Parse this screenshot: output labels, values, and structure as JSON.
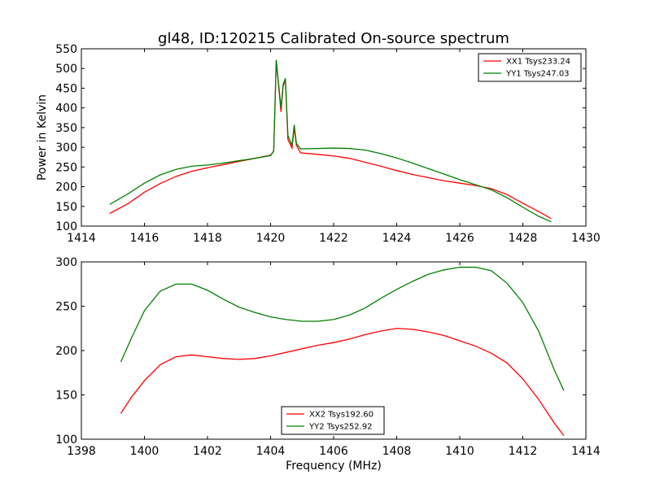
{
  "chart_data": [
    {
      "type": "line",
      "title": "gl48, ID:120215 Calibrated On-source spectrum",
      "xlabel": "",
      "ylabel": "Power in Kelvin",
      "xlim": [
        1414,
        1430
      ],
      "ylim": [
        100,
        550
      ],
      "xticks": [
        1414,
        1416,
        1418,
        1420,
        1422,
        1424,
        1426,
        1428,
        1430
      ],
      "yticks": [
        100,
        150,
        200,
        250,
        300,
        350,
        400,
        450,
        500,
        550
      ],
      "grid": false,
      "legend_position": "top-right",
      "series": [
        {
          "name": "XX1 Tsys233.24",
          "color": "#ff0000",
          "points": [
            [
              1414.9,
              132
            ],
            [
              1415.5,
              158
            ],
            [
              1416.0,
              186
            ],
            [
              1416.5,
              208
            ],
            [
              1417.0,
              226
            ],
            [
              1417.5,
              239
            ],
            [
              1418.0,
              248
            ],
            [
              1418.5,
              256
            ],
            [
              1419.0,
              264
            ],
            [
              1419.5,
              272
            ],
            [
              1420.0,
              280
            ],
            [
              1420.1,
              290
            ],
            [
              1420.18,
              520
            ],
            [
              1420.25,
              460
            ],
            [
              1420.33,
              390
            ],
            [
              1420.4,
              455
            ],
            [
              1420.47,
              472
            ],
            [
              1420.55,
              320
            ],
            [
              1420.68,
              298
            ],
            [
              1420.75,
              350
            ],
            [
              1420.82,
              305
            ],
            [
              1420.95,
              286
            ],
            [
              1421.5,
              282
            ],
            [
              1422.0,
              278
            ],
            [
              1422.5,
              272
            ],
            [
              1423.0,
              262
            ],
            [
              1423.5,
              252
            ],
            [
              1424.0,
              241
            ],
            [
              1424.5,
              231
            ],
            [
              1425.0,
              223
            ],
            [
              1425.5,
              215
            ],
            [
              1426.0,
              209
            ],
            [
              1426.5,
              203
            ],
            [
              1427.0,
              195
            ],
            [
              1427.5,
              180
            ],
            [
              1428.0,
              158
            ],
            [
              1428.5,
              137
            ],
            [
              1428.9,
              119
            ]
          ]
        },
        {
          "name": "YY1 Tsys247.03",
          "color": "#008000",
          "points": [
            [
              1414.9,
              155
            ],
            [
              1415.5,
              183
            ],
            [
              1416.0,
              209
            ],
            [
              1416.5,
              230
            ],
            [
              1417.0,
              244
            ],
            [
              1417.5,
              252
            ],
            [
              1418.0,
              255
            ],
            [
              1418.5,
              260
            ],
            [
              1419.0,
              266
            ],
            [
              1419.5,
              272
            ],
            [
              1420.0,
              279
            ],
            [
              1420.1,
              290
            ],
            [
              1420.18,
              522
            ],
            [
              1420.25,
              465
            ],
            [
              1420.33,
              400
            ],
            [
              1420.4,
              460
            ],
            [
              1420.47,
              475
            ],
            [
              1420.55,
              330
            ],
            [
              1420.68,
              305
            ],
            [
              1420.75,
              357
            ],
            [
              1420.82,
              310
            ],
            [
              1420.95,
              296
            ],
            [
              1421.5,
              297
            ],
            [
              1422.0,
              298
            ],
            [
              1422.5,
              297
            ],
            [
              1423.0,
              293
            ],
            [
              1423.5,
              284
            ],
            [
              1424.0,
              273
            ],
            [
              1424.5,
              260
            ],
            [
              1425.0,
              246
            ],
            [
              1425.5,
              232
            ],
            [
              1426.0,
              218
            ],
            [
              1426.5,
              205
            ],
            [
              1427.0,
              192
            ],
            [
              1427.5,
              172
            ],
            [
              1428.0,
              148
            ],
            [
              1428.5,
              125
            ],
            [
              1428.9,
              111
            ]
          ]
        }
      ]
    },
    {
      "type": "line",
      "title": "",
      "xlabel": "Frequency (MHz)",
      "ylabel": "",
      "xlim": [
        1398,
        1414
      ],
      "ylim": [
        100,
        300
      ],
      "xticks": [
        1398,
        1400,
        1402,
        1404,
        1406,
        1408,
        1410,
        1412,
        1414
      ],
      "yticks": [
        100,
        150,
        200,
        250,
        300
      ],
      "grid": false,
      "legend_position": "bottom-center",
      "series": [
        {
          "name": "XX2 Tsys192.60",
          "color": "#ff0000",
          "points": [
            [
              1399.25,
              129
            ],
            [
              1399.6,
              148
            ],
            [
              1400.0,
              166
            ],
            [
              1400.5,
              184
            ],
            [
              1401.0,
              193
            ],
            [
              1401.5,
              195
            ],
            [
              1402.0,
              193
            ],
            [
              1402.5,
              191
            ],
            [
              1403.0,
              190
            ],
            [
              1403.5,
              191
            ],
            [
              1404.0,
              194
            ],
            [
              1404.5,
              198
            ],
            [
              1405.0,
              202
            ],
            [
              1405.5,
              206
            ],
            [
              1406.0,
              209
            ],
            [
              1406.5,
              213
            ],
            [
              1407.0,
              218
            ],
            [
              1407.5,
              222
            ],
            [
              1408.0,
              225
            ],
            [
              1408.5,
              224
            ],
            [
              1409.0,
              221
            ],
            [
              1409.5,
              217
            ],
            [
              1410.0,
              211
            ],
            [
              1410.5,
              205
            ],
            [
              1411.0,
              197
            ],
            [
              1411.5,
              186
            ],
            [
              1412.0,
              168
            ],
            [
              1412.5,
              145
            ],
            [
              1413.0,
              118
            ],
            [
              1413.3,
              104
            ]
          ]
        },
        {
          "name": "YY2 Tsys252.92",
          "color": "#008000",
          "points": [
            [
              1399.25,
              187
            ],
            [
              1399.6,
              215
            ],
            [
              1400.0,
              245
            ],
            [
              1400.5,
              267
            ],
            [
              1401.0,
              275
            ],
            [
              1401.5,
              275
            ],
            [
              1402.0,
              268
            ],
            [
              1402.5,
              258
            ],
            [
              1403.0,
              249
            ],
            [
              1403.5,
              243
            ],
            [
              1404.0,
              238
            ],
            [
              1404.5,
              235
            ],
            [
              1405.0,
              233
            ],
            [
              1405.5,
              233
            ],
            [
              1406.0,
              235
            ],
            [
              1406.5,
              240
            ],
            [
              1407.0,
              248
            ],
            [
              1407.5,
              259
            ],
            [
              1408.0,
              269
            ],
            [
              1408.5,
              278
            ],
            [
              1409.0,
              286
            ],
            [
              1409.5,
              291
            ],
            [
              1410.0,
              294
            ],
            [
              1410.5,
              294
            ],
            [
              1411.0,
              290
            ],
            [
              1411.5,
              276
            ],
            [
              1412.0,
              254
            ],
            [
              1412.5,
              222
            ],
            [
              1413.0,
              178
            ],
            [
              1413.3,
              155
            ]
          ]
        }
      ]
    }
  ]
}
